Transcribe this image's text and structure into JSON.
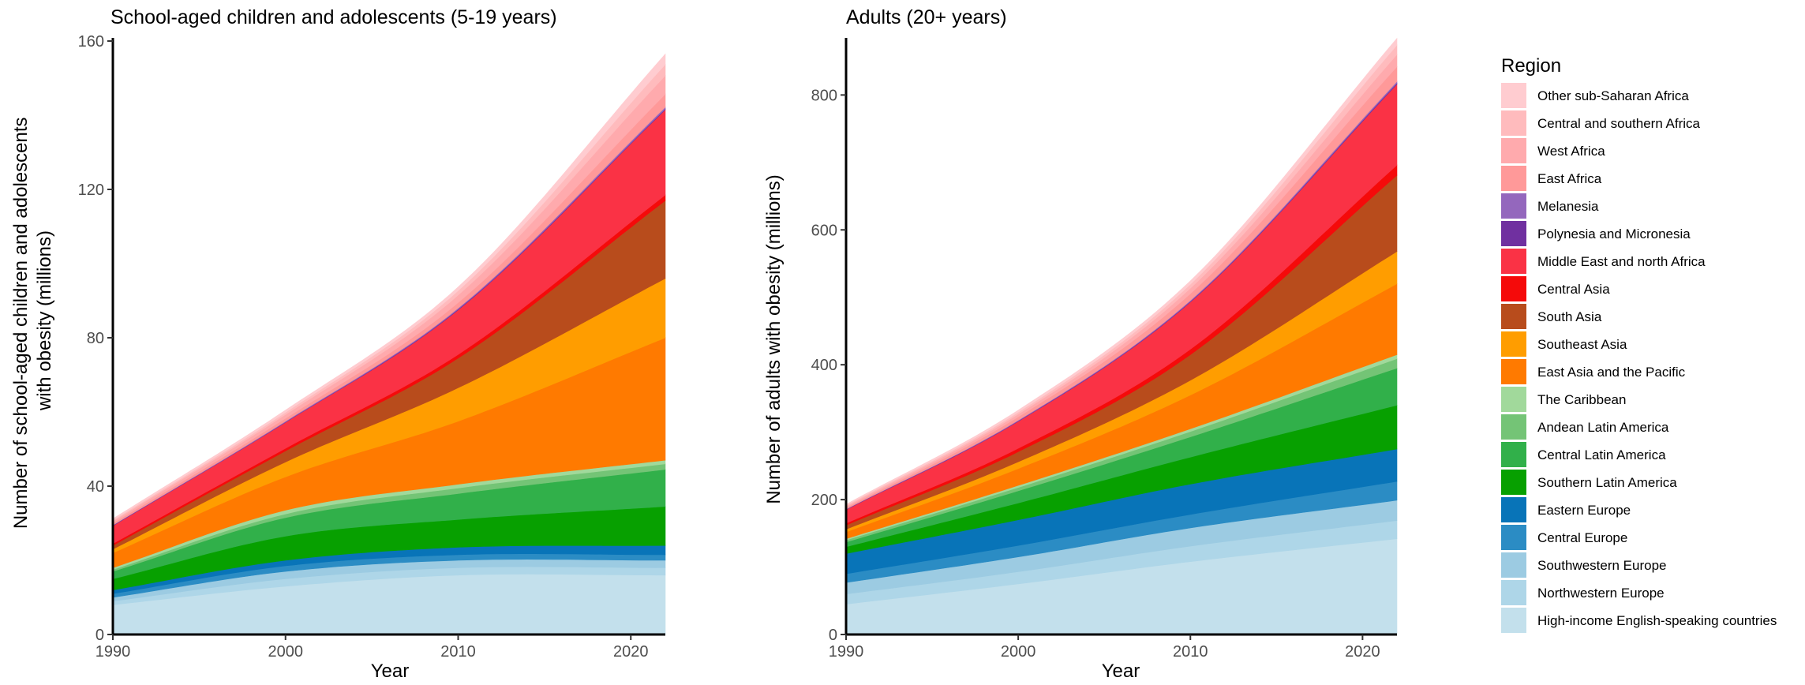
{
  "legend": {
    "title": "Region",
    "entries": [
      {
        "label": "Other sub-Saharan Africa",
        "color": "#FFCCD0"
      },
      {
        "label": "Central and southern Africa",
        "color": "#FFBBBD"
      },
      {
        "label": "West Africa",
        "color": "#FFAAAD"
      },
      {
        "label": "East Africa",
        "color": "#FF9999"
      },
      {
        "label": "Melanesia",
        "color": "#9467BD"
      },
      {
        "label": "Polynesia and Micronesia",
        "color": "#7030A0"
      },
      {
        "label": "Middle East and north Africa",
        "color": "#FA3245"
      },
      {
        "label": "Central Asia",
        "color": "#F50A0A"
      },
      {
        "label": "South Asia",
        "color": "#B84C1C"
      },
      {
        "label": "Southeast Asia",
        "color": "#FF9D00"
      },
      {
        "label": "East Asia and the Pacific",
        "color": "#FF7A00"
      },
      {
        "label": "The Caribbean",
        "color": "#A1D99B"
      },
      {
        "label": "Andean Latin America",
        "color": "#74C476"
      },
      {
        "label": "Central Latin America",
        "color": "#31B04A"
      },
      {
        "label": "Southern Latin America",
        "color": "#07A000"
      },
      {
        "label": "Eastern Europe",
        "color": "#0874B8"
      },
      {
        "label": "Central Europe",
        "color": "#2B8CC4"
      },
      {
        "label": "Southwestern Europe",
        "color": "#9CCBE2"
      },
      {
        "label": "Northwestern Europe",
        "color": "#AED6E8"
      },
      {
        "label": "High-income English-speaking countries",
        "color": "#C3E0EC"
      }
    ]
  },
  "chart_data": [
    {
      "type": "area",
      "stacked": true,
      "title": "School-aged children and adolescents (5-19 years)",
      "xlabel": "Year",
      "ylabel": "Number of school-aged children and adolescents with obesity (millions)",
      "ylabel_lines": [
        "Number of school-aged children and adolescents",
        "with obesity (millions)"
      ],
      "xlim": [
        1990,
        2022
      ],
      "ylim": [
        0,
        160
      ],
      "xticks": [
        1990,
        2000,
        2010,
        2020
      ],
      "yticks": [
        0,
        40,
        80,
        120,
        160
      ],
      "grid": false,
      "x": [
        1990,
        2000,
        2010,
        2022
      ],
      "series": [
        {
          "name": "High-income English-speaking countries",
          "values": [
            8,
            13,
            16,
            16
          ]
        },
        {
          "name": "Northwestern Europe",
          "values": [
            1,
            2,
            2,
            2
          ]
        },
        {
          "name": "Southwestern Europe",
          "values": [
            1,
            2,
            2,
            2
          ]
        },
        {
          "name": "Central Europe",
          "values": [
            1,
            1.5,
            1.5,
            1.5
          ]
        },
        {
          "name": "Eastern Europe",
          "values": [
            1,
            1.5,
            2,
            2.5
          ]
        },
        {
          "name": "Southern Latin America",
          "values": [
            3,
            6.5,
            7.5,
            10.5
          ]
        },
        {
          "name": "Central Latin America",
          "values": [
            2,
            5,
            7,
            10
          ]
        },
        {
          "name": "Andean Latin America",
          "values": [
            0.5,
            1,
            1.5,
            1.5
          ]
        },
        {
          "name": "The Caribbean",
          "values": [
            0.5,
            1,
            1,
            1
          ]
        },
        {
          "name": "East Asia and the Pacific",
          "values": [
            4,
            9,
            17,
            33
          ]
        },
        {
          "name": "Southeast Asia",
          "values": [
            1,
            4,
            9,
            16
          ]
        },
        {
          "name": "South Asia",
          "values": [
            1,
            3,
            8,
            21
          ]
        },
        {
          "name": "Central Asia",
          "values": [
            0.5,
            0.7,
            1,
            1.5
          ]
        },
        {
          "name": "Middle East and north Africa",
          "values": [
            4.8,
            7,
            12,
            23
          ]
        },
        {
          "name": "Polynesia and Micronesia",
          "values": [
            0.1,
            0.1,
            0.2,
            0.2
          ]
        },
        {
          "name": "Melanesia",
          "values": [
            0.1,
            0.2,
            0.3,
            0.5
          ]
        },
        {
          "name": "East Africa",
          "values": [
            0.5,
            0.8,
            1.5,
            3.5
          ]
        },
        {
          "name": "West Africa",
          "values": [
            0.5,
            1,
            2,
            5
          ]
        },
        {
          "name": "Central and southern Africa",
          "values": [
            0.3,
            0.6,
            1.2,
            3
          ]
        },
        {
          "name": "Other sub-Saharan Africa",
          "values": [
            0.4,
            0.6,
            1,
            2.8
          ]
        }
      ]
    },
    {
      "type": "area",
      "stacked": true,
      "title": "Adults (20+ years)",
      "xlabel": "Year",
      "ylabel": "Number of adults with obesity (millions)",
      "ylabel_lines": [
        "Number of adults with obesity (millions)"
      ],
      "xlim": [
        1990,
        2022
      ],
      "ylim": [
        0,
        880
      ],
      "xticks": [
        1990,
        2000,
        2010,
        2020
      ],
      "yticks": [
        0,
        200,
        400,
        600,
        800
      ],
      "grid": false,
      "x": [
        1990,
        2000,
        2010,
        2022
      ],
      "series": [
        {
          "name": "High-income English-speaking countries",
          "values": [
            45,
            75,
            108,
            142
          ]
        },
        {
          "name": "Northwestern Europe",
          "values": [
            15,
            18,
            23,
            27
          ]
        },
        {
          "name": "Southwestern Europe",
          "values": [
            17,
            22,
            27,
            30
          ]
        },
        {
          "name": "Central Europe",
          "values": [
            13,
            17,
            20,
            28
          ]
        },
        {
          "name": "Eastern Europe",
          "values": [
            30,
            38,
            45,
            48
          ]
        },
        {
          "name": "Southern Latin America",
          "values": [
            10,
            25,
            40,
            65
          ]
        },
        {
          "name": "Central Latin America",
          "values": [
            7,
            18,
            30,
            55
          ]
        },
        {
          "name": "Andean Latin America",
          "values": [
            3,
            5,
            8,
            14
          ]
        },
        {
          "name": "The Caribbean",
          "values": [
            2,
            3,
            4,
            6
          ]
        },
        {
          "name": "East Asia and the Pacific",
          "values": [
            10,
            25,
            50,
            105
          ]
        },
        {
          "name": "Southeast Asia",
          "values": [
            4,
            10,
            22,
            48
          ]
        },
        {
          "name": "South Asia",
          "values": [
            6,
            15,
            38,
            113
          ]
        },
        {
          "name": "Central Asia",
          "values": [
            3,
            5,
            8,
            15
          ]
        },
        {
          "name": "Middle East and north Africa",
          "values": [
            20,
            40,
            70,
            120
          ]
        },
        {
          "name": "Polynesia and Micronesia",
          "values": [
            0.5,
            0.7,
            1,
            1.5
          ]
        },
        {
          "name": "Melanesia",
          "values": [
            0.5,
            1,
            1.5,
            2.5
          ]
        },
        {
          "name": "East Africa",
          "values": [
            2,
            5,
            10,
            22
          ]
        },
        {
          "name": "West Africa",
          "values": [
            2,
            4,
            8,
            18
          ]
        },
        {
          "name": "Central and southern Africa",
          "values": [
            1.5,
            3,
            6,
            14
          ]
        },
        {
          "name": "Other sub-Saharan Africa",
          "values": [
            1.5,
            3,
            5,
            10
          ]
        }
      ]
    }
  ]
}
